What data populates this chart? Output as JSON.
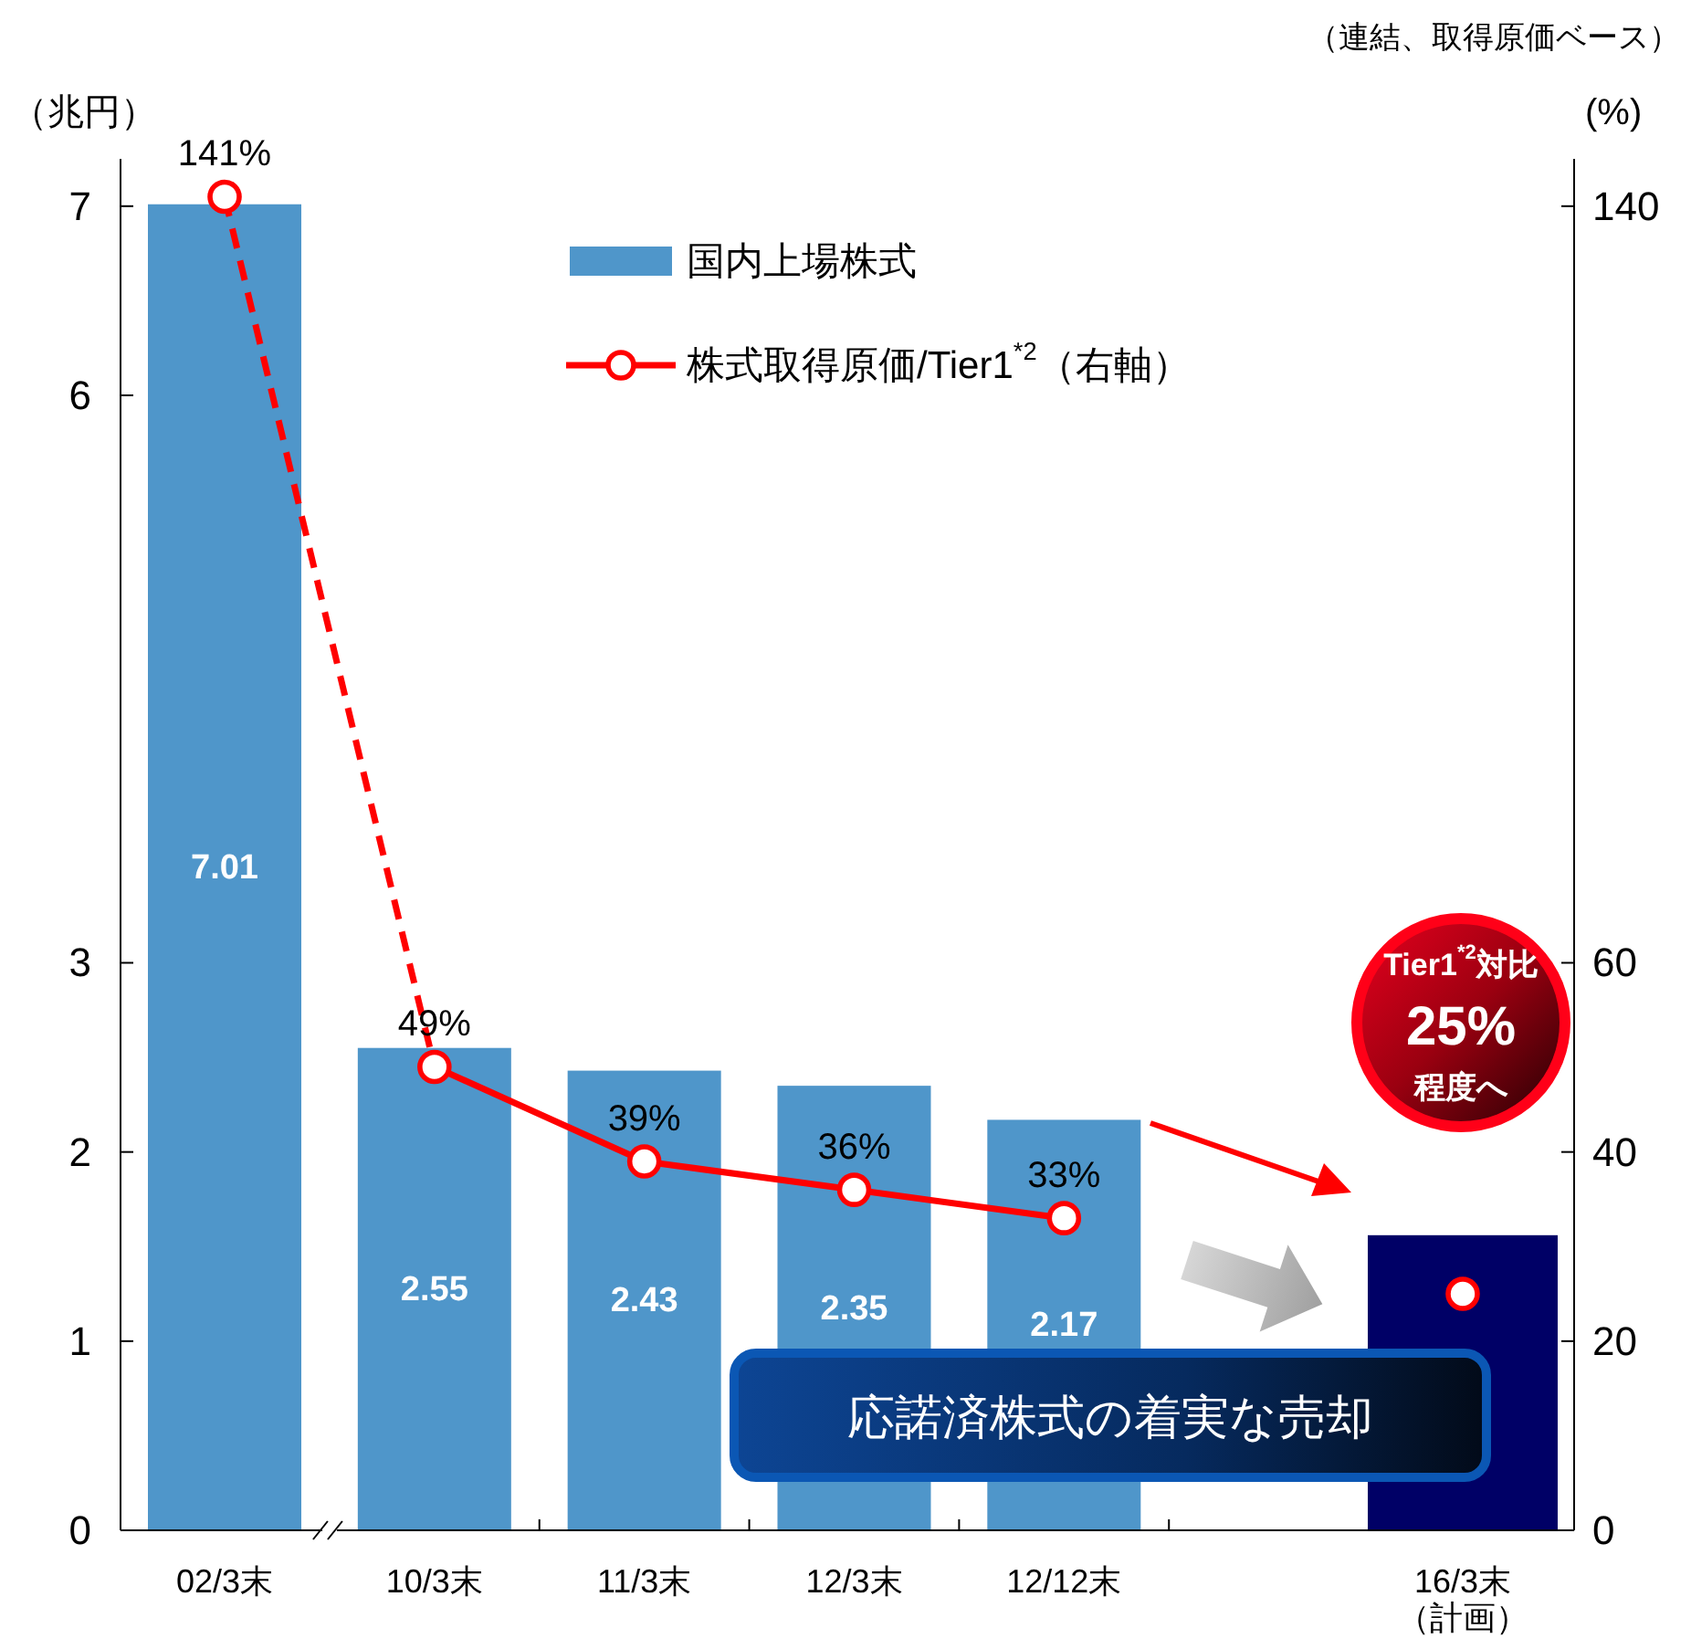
{
  "chart_data": {
    "type": "bar",
    "categories": [
      "02/3末",
      "10/3末",
      "11/3末",
      "12/3末",
      "12/12末",
      "16/3末（計画）"
    ],
    "series": [
      {
        "name": "国内上場株式",
        "color": "#4f96ca",
        "colors": [
          "#4f96ca",
          "#4f96ca",
          "#4f96ca",
          "#4f96ca",
          "#4f96ca",
          "#000066"
        ],
        "values": [
          7.01,
          2.55,
          2.43,
          2.35,
          2.17,
          1.56
        ],
        "value_labels": [
          "7.01",
          "2.55",
          "2.43",
          "2.35",
          "2.17",
          null
        ]
      },
      {
        "name": "株式取得原価/Tier1$^{*2}$（右軸）",
        "type": "line",
        "axis": "y2",
        "color": "#ff0000",
        "marker": "circle",
        "line_style": "solid",
        "values": [
          null,
          49,
          39,
          36,
          33,
          null
        ],
        "value_labels": [
          null,
          "49%",
          "39%",
          "36%",
          "33%",
          null
        ]
      },
      {
        "type": "line",
        "axis": "y2",
        "color": "#ff0000",
        "line_style": "dashed",
        "values": [
          141,
          49,
          null,
          null,
          null,
          null
        ]
      },
      {
        "type": "scatter",
        "axis": "y2",
        "color": "#ff0000",
        "marker": "circle",
        "values": [
          141,
          null,
          null,
          null,
          null,
          25
        ],
        "value_labels": [
          "141%",
          null,
          null,
          null,
          null,
          null
        ]
      }
    ],
    "ylabel": "（兆円）",
    "y2label": "(%)",
    "ylim": [
      0,
      7.25
    ],
    "yticks": [
      0,
      1,
      2,
      3,
      6,
      7
    ],
    "y2lim": [
      0,
      145
    ],
    "y2ticks": [
      0,
      20,
      40,
      60,
      140
    ],
    "legend": "top",
    "annotations": [
      "（連結、取得原価ベース）",
      "応諾済株式の着実な売却",
      "Tier1$^{*2}$対比\n25%\n程度へ"
    ]
  }
}
